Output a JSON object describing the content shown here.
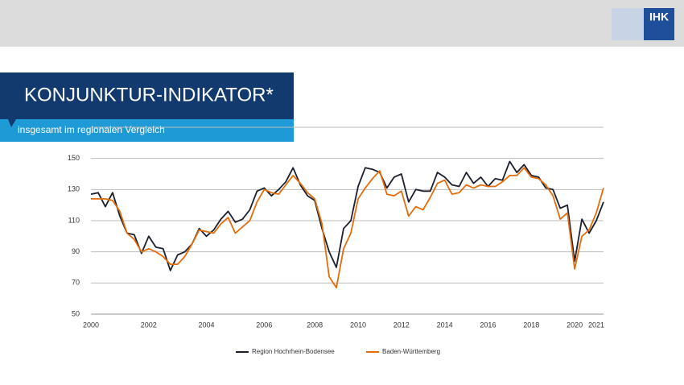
{
  "logo": "IHK",
  "chart_data": {
    "type": "line",
    "title": "KONJUNKTUR-INDIKATOR*",
    "subtitle": "insgesamt im regionalen Vergleich",
    "categories": [
      "2000",
      null,
      null,
      null,
      null,
      null,
      null,
      null,
      "2002",
      null,
      null,
      null,
      null,
      null,
      null,
      null,
      "2004",
      null,
      null,
      null,
      null,
      null,
      null,
      null,
      "2006",
      null,
      null,
      null,
      null,
      null,
      null,
      "2008",
      null,
      null,
      null,
      null,
      null,
      "2010",
      null,
      null,
      null,
      null,
      null,
      "2012",
      null,
      null,
      null,
      null,
      null,
      "2014",
      null,
      null,
      null,
      null,
      null,
      "2016",
      null,
      null,
      null,
      null,
      null,
      "2018",
      null,
      null,
      null,
      null,
      null,
      "2020",
      null,
      null,
      "2021",
      null
    ],
    "series": [
      {
        "name": "Region Hochrhein-Bodensee",
        "color": "#1b1f2e",
        "values": [
          127,
          128,
          119,
          128,
          113,
          102,
          101,
          89,
          100,
          93,
          92,
          78,
          88,
          90,
          95,
          105,
          100,
          104,
          111,
          116,
          109,
          111,
          117,
          129,
          131,
          126,
          130,
          135,
          144,
          133,
          126,
          123,
          105,
          90,
          80,
          105,
          110,
          132,
          144,
          143,
          141,
          131,
          138,
          140,
          122,
          130,
          129,
          129,
          141,
          138,
          133,
          132,
          141,
          134,
          138,
          132,
          137,
          136,
          148,
          141,
          146,
          139,
          138,
          131,
          130,
          118,
          120,
          84,
          111,
          102,
          110,
          122
        ]
      },
      {
        "name": "Baden-Württemberg",
        "color": "#e46c0a",
        "values": [
          124,
          124,
          124,
          123,
          116,
          102,
          98,
          90,
          92,
          90,
          87,
          82,
          82,
          87,
          95,
          104,
          103,
          102,
          108,
          112,
          102,
          106,
          110,
          122,
          130,
          128,
          127,
          133,
          139,
          134,
          128,
          124,
          108,
          74,
          67,
          92,
          102,
          124,
          131,
          137,
          142,
          127,
          126,
          129,
          113,
          119,
          117,
          125,
          134,
          136,
          127,
          128,
          133,
          131,
          133,
          132,
          132,
          135,
          139,
          139,
          144,
          138,
          137,
          133,
          126,
          111,
          115,
          79,
          100,
          104,
          115,
          131
        ]
      }
    ],
    "ylim": [
      50,
      170
    ],
    "yticks": [
      50,
      70,
      90,
      110,
      130,
      150
    ],
    "grid": true,
    "legend": "bottom"
  }
}
